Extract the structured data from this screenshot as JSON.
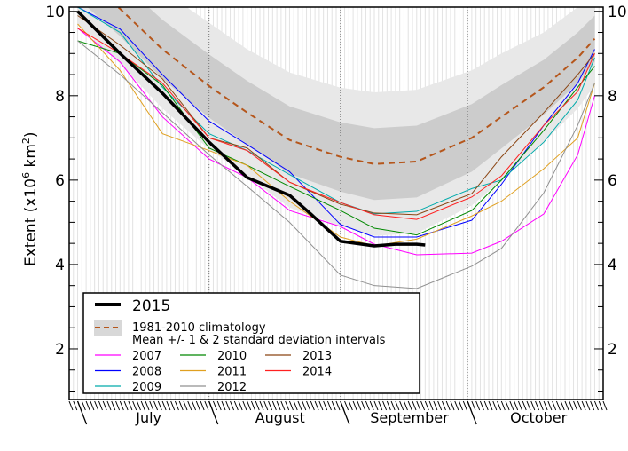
{
  "chart_data": {
    "type": "line",
    "ylabel": "Extent (x10",
    "ylabel_sup1": "6",
    "ylabel_mid": " km",
    "ylabel_sup2": "2",
    "ylabel_end": ")",
    "ylim": [
      0.8,
      10.1
    ],
    "xlim": [
      "2015-06-29",
      "2015-11-02"
    ],
    "yticks": [
      2,
      4,
      6,
      8,
      10
    ],
    "month_labels": [
      "July",
      "August",
      "September",
      "October"
    ],
    "month_starts": [
      "2015-07-01",
      "2015-08-01",
      "2015-09-01",
      "2015-10-01"
    ],
    "grid": "daily vertical lines",
    "legend_position": "bottom-left",
    "x": [
      "2015-07-01",
      "2015-07-11",
      "2015-07-21",
      "2015-08-01",
      "2015-08-10",
      "2015-08-20",
      "2015-09-01",
      "2015-09-09",
      "2015-09-19",
      "2015-10-02",
      "2015-10-09",
      "2015-10-19",
      "2015-10-27",
      "2015-10-31"
    ],
    "climatology": {
      "label": "1981-2010 climatology",
      "band_label": "Mean +/- 1 & 2 standard deviation intervals",
      "color": "#b5561b",
      "mean": [
        10.9,
        10.06,
        9.1,
        8.23,
        7.6,
        6.95,
        6.55,
        6.38,
        6.44,
        7.0,
        7.5,
        8.2,
        8.9,
        9.35
      ],
      "std": [
        0.6,
        0.65,
        0.7,
        0.75,
        0.75,
        0.8,
        0.82,
        0.85,
        0.85,
        0.8,
        0.75,
        0.65,
        0.6,
        0.55
      ],
      "band1_color": "#cccccc",
      "band2_color": "#e8e8e8"
    },
    "current": {
      "name": "2015",
      "color": "#000000",
      "x": [
        "2015-07-01",
        "2015-07-11",
        "2015-07-21",
        "2015-08-01",
        "2015-08-10",
        "2015-08-20",
        "2015-08-25",
        "2015-09-01",
        "2015-09-09",
        "2015-09-14",
        "2015-09-19",
        "2015-09-21"
      ],
      "values": [
        10.0,
        9.0,
        8.06,
        6.9,
        6.06,
        5.64,
        5.2,
        4.55,
        4.44,
        4.48,
        4.48,
        4.46
      ]
    },
    "series": [
      {
        "name": "2007",
        "color": "#ff00ff",
        "values": [
          9.6,
          8.8,
          7.5,
          6.5,
          6.06,
          5.28,
          4.9,
          4.48,
          4.23,
          4.27,
          4.55,
          5.2,
          6.6,
          8.0
        ]
      },
      {
        "name": "2008",
        "color": "#0000ff",
        "values": [
          10.1,
          9.58,
          8.5,
          7.4,
          6.84,
          6.2,
          4.95,
          4.65,
          4.65,
          5.05,
          5.9,
          7.3,
          8.3,
          9.1
        ]
      },
      {
        "name": "2009",
        "color": "#00aaaa",
        "values": [
          10.1,
          9.5,
          8.2,
          7.1,
          6.7,
          6.13,
          5.47,
          5.2,
          5.26,
          5.8,
          6.0,
          6.9,
          7.9,
          8.9
        ]
      },
      {
        "name": "2010",
        "color": "#008800",
        "values": [
          9.3,
          9.0,
          8.25,
          6.76,
          6.35,
          5.85,
          5.28,
          4.86,
          4.7,
          5.28,
          6.0,
          7.18,
          8.2,
          8.7
        ]
      },
      {
        "name": "2011",
        "color": "#e0a020",
        "values": [
          9.7,
          8.6,
          7.1,
          6.7,
          6.35,
          5.5,
          4.65,
          4.44,
          4.6,
          5.15,
          5.5,
          6.27,
          7.0,
          8.3
        ]
      },
      {
        "name": "2012",
        "color": "#909090",
        "values": [
          9.3,
          8.5,
          7.6,
          6.6,
          5.85,
          5.0,
          3.75,
          3.5,
          3.43,
          3.96,
          4.38,
          5.7,
          7.3,
          8.3
        ]
      },
      {
        "name": "2013",
        "color": "#8b4513",
        "values": [
          9.9,
          9.2,
          8.4,
          7.0,
          6.76,
          5.95,
          5.43,
          5.22,
          5.18,
          5.68,
          6.55,
          7.6,
          8.5,
          9.0
        ]
      },
      {
        "name": "2014",
        "color": "#ff2020",
        "values": [
          9.6,
          9.0,
          8.3,
          7.0,
          6.7,
          5.95,
          5.47,
          5.18,
          5.07,
          5.6,
          6.1,
          7.3,
          8.1,
          9.0
        ]
      }
    ]
  }
}
